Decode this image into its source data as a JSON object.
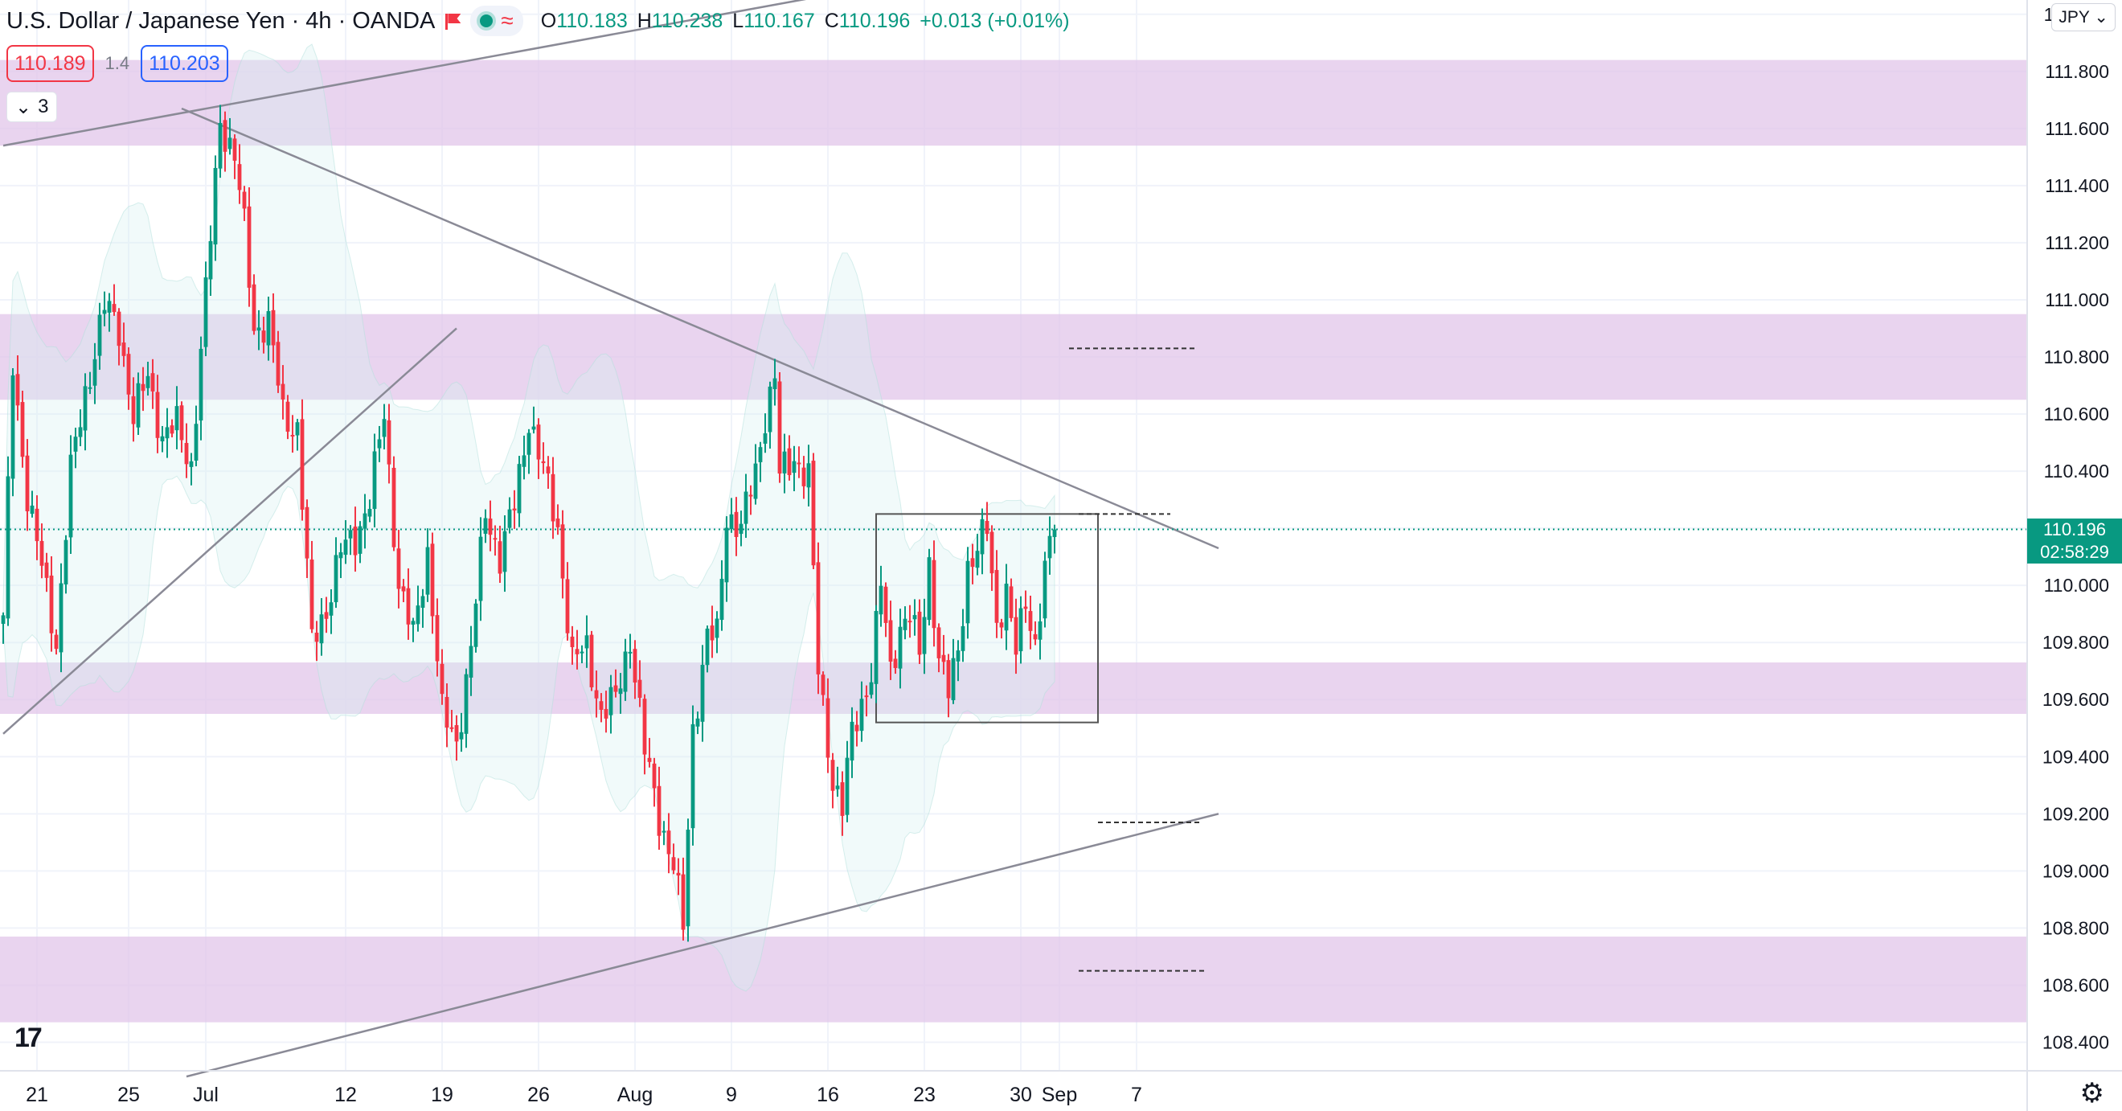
{
  "header": {
    "symbol": "U.S. Dollar / Japanese Yen",
    "interval": "4h",
    "source": "OANDA",
    "open_label": "O",
    "open": "110.183",
    "high_label": "H",
    "high": "110.238",
    "low_label": "L",
    "low": "110.167",
    "close_label": "C",
    "close": "110.196",
    "change": "+0.013 (+0.01%)"
  },
  "quotes": {
    "sell": "110.189",
    "spread": "1.4",
    "buy": "110.203"
  },
  "collapse_count": "3",
  "currency_button": "JPY",
  "logo_text": "17",
  "current_price": {
    "value": "110.196",
    "countdown": "02:58:29"
  },
  "colors": {
    "up": "#089981",
    "down": "#f23645",
    "zone": "#e1c4e9",
    "line": "#8a8a96",
    "band": "#d6f0f2"
  },
  "icons": {
    "flag": "flag-icon",
    "indicator": "status-dot-icon",
    "wave": "wave-icon",
    "chevron": "chevron-down-icon",
    "settings": "gear-icon"
  },
  "chart_data": {
    "type": "candlestick",
    "price_scale": {
      "min": 108.3,
      "max": 112.05
    },
    "y_ticks": [
      "108.400",
      "108.600",
      "108.800",
      "109.000",
      "109.200",
      "109.400",
      "109.600",
      "109.800",
      "110.000",
      "110.200",
      "110.400",
      "110.600",
      "110.800",
      "111.000",
      "111.200",
      "111.400",
      "111.600",
      "111.800",
      "112.000"
    ],
    "x_ticks": [
      {
        "label": "21",
        "slot": 7
      },
      {
        "label": "25",
        "slot": 26
      },
      {
        "label": "Jul",
        "slot": 42
      },
      {
        "label": "12",
        "slot": 71
      },
      {
        "label": "19",
        "slot": 91
      },
      {
        "label": "26",
        "slot": 111
      },
      {
        "label": "Aug",
        "slot": 131
      },
      {
        "label": "9",
        "slot": 151
      },
      {
        "label": "16",
        "slot": 171
      },
      {
        "label": "23",
        "slot": 191
      },
      {
        "label": "30",
        "slot": 211
      },
      {
        "label": "Sep",
        "slot": 219
      },
      {
        "label": "7",
        "slot": 235
      }
    ],
    "zones": [
      {
        "from": 111.54,
        "to": 111.84
      },
      {
        "from": 110.65,
        "to": 110.95
      },
      {
        "from": 109.55,
        "to": 109.73
      },
      {
        "from": 108.47,
        "to": 108.77
      }
    ],
    "trend_lines": [
      {
        "p1": [
          0,
          111.54
        ],
        "p2": [
          214,
          112.2
        ]
      },
      {
        "p1": [
          37,
          111.67
        ],
        "p2": [
          252,
          110.13
        ]
      },
      {
        "p1": [
          0,
          109.48
        ],
        "p2": [
          94,
          110.9
        ]
      },
      {
        "p1": [
          38,
          108.28
        ],
        "p2": [
          252,
          109.2
        ]
      }
    ],
    "levels": [
      {
        "price": 110.83,
        "from_slot": 221,
        "to_slot": 247
      },
      {
        "price": 110.25,
        "from_slot": 223,
        "to_slot": 242
      },
      {
        "price": 109.17,
        "from_slot": 227,
        "to_slot": 248
      },
      {
        "price": 108.65,
        "from_slot": 223,
        "to_slot": 249
      }
    ],
    "range_box": {
      "from_slot": 181,
      "to_slot": 227,
      "top": 110.25,
      "bottom": 109.52
    },
    "current_price": 110.196,
    "waypoints": [
      [
        0,
        109.87
      ],
      [
        2,
        110.77
      ],
      [
        5,
        110.32
      ],
      [
        8,
        110.06
      ],
      [
        11,
        109.8
      ],
      [
        14,
        110.4
      ],
      [
        17,
        110.67
      ],
      [
        21,
        110.98
      ],
      [
        24,
        110.9
      ],
      [
        27,
        110.59
      ],
      [
        30,
        110.73
      ],
      [
        33,
        110.52
      ],
      [
        36,
        110.56
      ],
      [
        39,
        110.42
      ],
      [
        42,
        111.02
      ],
      [
        45,
        111.63
      ],
      [
        48,
        111.5
      ],
      [
        50,
        111.25
      ],
      [
        52,
        110.9
      ],
      [
        55,
        110.92
      ],
      [
        58,
        110.6
      ],
      [
        61,
        110.55
      ],
      [
        64,
        109.8
      ],
      [
        67,
        109.92
      ],
      [
        70,
        110.12
      ],
      [
        73,
        110.17
      ],
      [
        76,
        110.3
      ],
      [
        79,
        110.6
      ],
      [
        82,
        110.0
      ],
      [
        85,
        109.82
      ],
      [
        88,
        110.12
      ],
      [
        91,
        109.55
      ],
      [
        94,
        109.45
      ],
      [
        97,
        109.78
      ],
      [
        100,
        110.26
      ],
      [
        103,
        110.1
      ],
      [
        106,
        110.28
      ],
      [
        109,
        110.59
      ],
      [
        112,
        110.4
      ],
      [
        115,
        110.2
      ],
      [
        118,
        109.73
      ],
      [
        121,
        109.78
      ],
      [
        124,
        109.55
      ],
      [
        127,
        109.6
      ],
      [
        130,
        109.82
      ],
      [
        133,
        109.42
      ],
      [
        136,
        109.19
      ],
      [
        139,
        109.02
      ],
      [
        141,
        108.8
      ],
      [
        143,
        109.5
      ],
      [
        146,
        109.82
      ],
      [
        148,
        109.82
      ],
      [
        150,
        110.25
      ],
      [
        153,
        110.2
      ],
      [
        156,
        110.4
      ],
      [
        158,
        110.6
      ],
      [
        160,
        110.73
      ],
      [
        161,
        110.38
      ],
      [
        164,
        110.45
      ],
      [
        167,
        110.38
      ],
      [
        169,
        109.7
      ],
      [
        172,
        109.32
      ],
      [
        174,
        109.22
      ],
      [
        176,
        109.48
      ],
      [
        180,
        109.7
      ],
      [
        182,
        110.0
      ],
      [
        184,
        109.7
      ],
      [
        186,
        109.86
      ],
      [
        188,
        109.9
      ],
      [
        190,
        109.75
      ],
      [
        192,
        110.08
      ],
      [
        194,
        109.75
      ],
      [
        196,
        109.62
      ],
      [
        198,
        109.77
      ],
      [
        200,
        110.07
      ],
      [
        202,
        110.12
      ],
      [
        204,
        110.2
      ],
      [
        206,
        109.87
      ],
      [
        208,
        109.98
      ],
      [
        210,
        109.76
      ],
      [
        212,
        109.95
      ],
      [
        214,
        109.8
      ],
      [
        216,
        110.05
      ],
      [
        218,
        110.2
      ]
    ]
  }
}
